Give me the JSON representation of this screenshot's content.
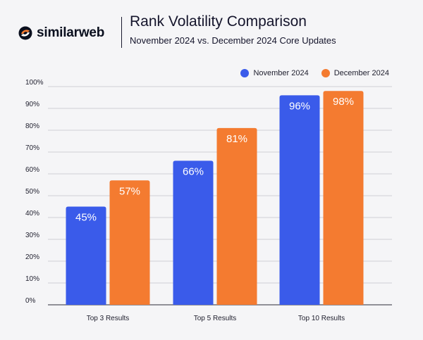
{
  "brand": {
    "name": "similarweb",
    "logo_icon": "similarweb-logo-icon"
  },
  "header": {
    "title": "Rank Volatility Comparison",
    "subtitle": "November 2024 vs. December 2024 Core Updates"
  },
  "colors": {
    "november": "#3a5bea",
    "december": "#f47b30",
    "grid": "#cfcfd6",
    "background": "#f5f5f7"
  },
  "chart_data": {
    "type": "bar",
    "categories": [
      "Top 3 Results",
      "Top 5 Results",
      "Top 10 Results"
    ],
    "series": [
      {
        "name": "November 2024",
        "values": [
          45,
          66,
          96
        ],
        "labels": [
          "45%",
          "66%",
          "96%"
        ]
      },
      {
        "name": "December 2024",
        "values": [
          57,
          81,
          98
        ],
        "labels": [
          "57%",
          "81%",
          "98%"
        ]
      }
    ],
    "title": "Rank Volatility Comparison",
    "subtitle": "November 2024 vs. December 2024 Core Updates",
    "ylim": [
      0,
      100
    ],
    "yticks": [
      "0%",
      "10%",
      "20%",
      "30%",
      "40%",
      "50%",
      "60%",
      "70%",
      "80%",
      "90%",
      "100%"
    ],
    "grid": true,
    "legend_position": "top-right"
  }
}
